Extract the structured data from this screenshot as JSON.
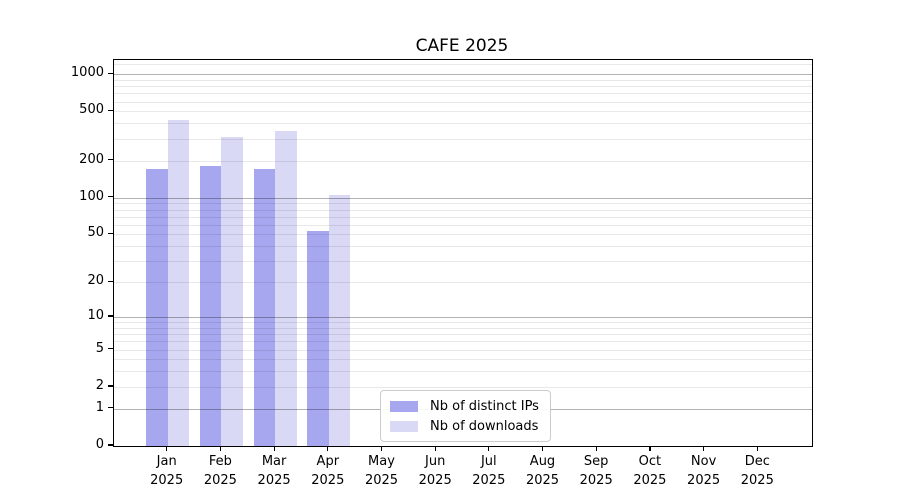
{
  "chart_data": {
    "type": "bar",
    "title": "CAFE 2025",
    "scale": "log10(value+1)",
    "grid": "on",
    "legend_position": "inside-bottom-center",
    "year": "2025",
    "categories": [
      "Jan",
      "Feb",
      "Mar",
      "Apr",
      "May",
      "Jun",
      "Jul",
      "Aug",
      "Sep",
      "Oct",
      "Nov",
      "Dec"
    ],
    "series": [
      {
        "name": "Nb of distinct IPs",
        "color": "#a7a7f0",
        "values": [
          170,
          182,
          172,
          53,
          0,
          0,
          0,
          0,
          0,
          0,
          0,
          0
        ]
      },
      {
        "name": "Nb of downloads",
        "color": "#d9d9f6",
        "values": [
          425,
          313,
          346,
          105,
          0,
          0,
          0,
          0,
          0,
          0,
          0,
          0
        ]
      }
    ],
    "yticks": [
      1000,
      500,
      200,
      100,
      50,
      20,
      10,
      5,
      2,
      1,
      0
    ],
    "ylim": [
      0,
      1300
    ]
  }
}
